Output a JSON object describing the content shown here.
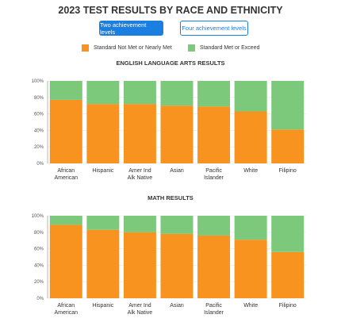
{
  "page": {
    "title": "2023 TEST RESULTS BY RACE AND ETHNICITY",
    "toggle": {
      "active_label": "Two achievement levels",
      "inactive_label": "Four achievement levels"
    }
  },
  "legend": [
    {
      "label": "Standard Not Met or Nearly Met",
      "color": "#f7931e"
    },
    {
      "label": "Standard Met or Exceed",
      "color": "#7dc97b"
    }
  ],
  "chart_data": [
    {
      "type": "bar",
      "stacked": true,
      "title": "ENGLISH LANGUAGE ARTS RESULTS",
      "categories": [
        [
          "African",
          "American"
        ],
        [
          "Hispanic"
        ],
        [
          "Amer Ind",
          "Alk Native"
        ],
        [
          "Asian"
        ],
        [
          "Pacific",
          "Islander"
        ],
        [
          "White"
        ],
        [
          "Filipino"
        ]
      ],
      "series": [
        {
          "name": "Standard Not Met or Nearly Met",
          "color": "#f7931e",
          "values": [
            77,
            72,
            72,
            70,
            69,
            63,
            41
          ]
        },
        {
          "name": "Standard Met or Exceed",
          "color": "#7dc97b",
          "values": [
            23,
            28,
            28,
            30,
            31,
            37,
            59
          ]
        }
      ],
      "yticks": [
        "0%",
        "20%",
        "40%",
        "60%",
        "80%",
        "100%"
      ],
      "ylim": [
        0,
        100
      ]
    },
    {
      "type": "bar",
      "stacked": true,
      "title": "MATH RESULTS",
      "categories": [
        [
          "African",
          "American"
        ],
        [
          "Hispanic"
        ],
        [
          "Amer Ind",
          "Alk Native"
        ],
        [
          "Asian"
        ],
        [
          "Pacific",
          "Islander"
        ],
        [
          "White"
        ],
        [
          "Filipino"
        ]
      ],
      "series": [
        {
          "name": "Standard Not Met or Nearly Met",
          "color": "#f7931e",
          "values": [
            89,
            83,
            80,
            78,
            76,
            71,
            56
          ]
        },
        {
          "name": "Standard Met or Exceed",
          "color": "#7dc97b",
          "values": [
            11,
            17,
            20,
            22,
            24,
            29,
            44
          ]
        }
      ],
      "yticks": [
        "0%",
        "20%",
        "40%",
        "60%",
        "80%",
        "100%"
      ],
      "ylim": [
        0,
        100
      ]
    }
  ]
}
